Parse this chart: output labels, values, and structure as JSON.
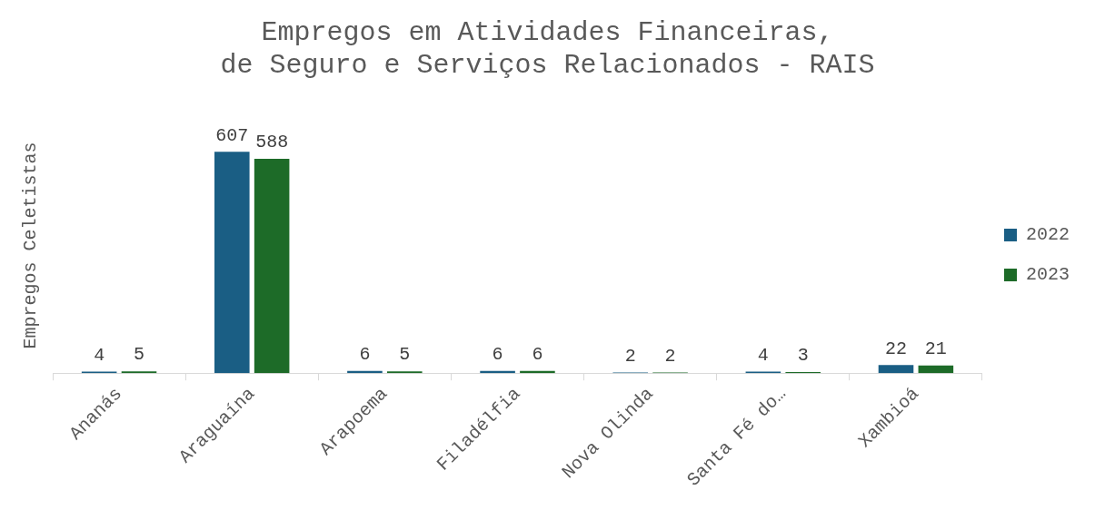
{
  "chart_data": {
    "type": "bar",
    "title": "Empregos em Atividades Financeiras, de Seguro e Serviços Relacionados - RAIS",
    "ylabel": "Empregos Celetistas",
    "categories": [
      "Ananás",
      "Araguaína",
      "Arapoema",
      "Filadélfia",
      "Nova Olinda",
      "Santa Fé do…",
      "Xambioá"
    ],
    "series": [
      {
        "name": "2022",
        "color": "#1a5e84",
        "values": [
          4,
          607,
          6,
          6,
          2,
          4,
          22
        ]
      },
      {
        "name": "2023",
        "color": "#1d6b28",
        "values": [
          5,
          588,
          5,
          6,
          2,
          3,
          21
        ]
      }
    ],
    "data_labels": true,
    "legend": "right",
    "grid": false
  }
}
